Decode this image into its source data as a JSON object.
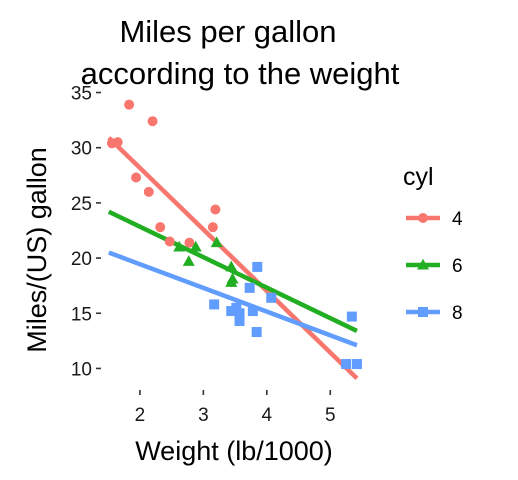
{
  "chart_data": {
    "type": "scatter",
    "title_lines": [
      "Miles per gallon",
      "according to the weight"
    ],
    "xlabel": "Weight (lb/1000)",
    "ylabel": "Miles/(US) gallon",
    "xlim": [
      1.45,
      5.5
    ],
    "ylim": [
      8.5,
      35.5
    ],
    "xticks": [
      2,
      3,
      4,
      5
    ],
    "yticks": [
      10,
      15,
      20,
      25,
      30,
      35
    ],
    "grid": false,
    "legend": {
      "title": "cyl",
      "position": "right"
    },
    "series": [
      {
        "name": "4",
        "color": "#F8766D",
        "marker": "circle",
        "points": [
          [
            1.56,
            30.4
          ],
          [
            1.65,
            30.5
          ],
          [
            1.83,
            33.9
          ],
          [
            1.94,
            27.3
          ],
          [
            2.14,
            26.0
          ],
          [
            2.2,
            32.4
          ],
          [
            2.32,
            22.8
          ],
          [
            2.47,
            21.5
          ],
          [
            2.78,
            21.4
          ],
          [
            3.15,
            22.8
          ],
          [
            3.19,
            24.4
          ]
        ],
        "fit": {
          "x": [
            1.51,
            5.42
          ],
          "y": [
            30.9,
            9.1
          ]
        }
      },
      {
        "name": "6",
        "color": "#22AE22",
        "marker": "triangle",
        "points": [
          [
            2.62,
            21.0
          ],
          [
            2.77,
            19.7
          ],
          [
            2.88,
            21.0
          ],
          [
            3.21,
            21.4
          ],
          [
            3.44,
            19.2
          ],
          [
            3.46,
            18.1
          ],
          [
            3.44,
            17.8
          ]
        ],
        "fit": {
          "x": [
            1.51,
            5.42
          ],
          "y": [
            24.2,
            13.4
          ]
        }
      },
      {
        "name": "8",
        "color": "#619CFF",
        "marker": "square",
        "points": [
          [
            3.17,
            15.8
          ],
          [
            3.44,
            15.2
          ],
          [
            3.52,
            15.5
          ],
          [
            3.57,
            14.3
          ],
          [
            3.57,
            15.0
          ],
          [
            3.73,
            17.3
          ],
          [
            3.78,
            15.2
          ],
          [
            3.84,
            13.3
          ],
          [
            3.85,
            19.2
          ],
          [
            4.07,
            16.4
          ],
          [
            5.25,
            10.4
          ],
          [
            5.34,
            14.7
          ],
          [
            5.42,
            10.4
          ]
        ],
        "fit": {
          "x": [
            1.51,
            5.42
          ],
          "y": [
            20.5,
            12.1
          ]
        }
      }
    ]
  }
}
